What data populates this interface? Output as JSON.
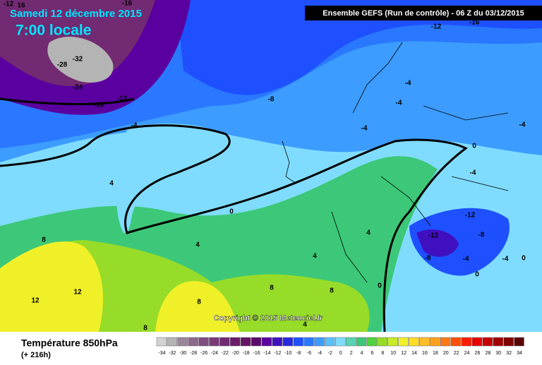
{
  "header": {
    "title": "Samedi 12 décembre 2015",
    "subtitle": "7:00 locale",
    "model": "Ensemble GEFS  (Run de contrôle)  - 06 Z du 03/12/2015",
    "copyright": "Copyright © 2015 Meteociel.fr"
  },
  "footer": {
    "field": "Température 850hPa",
    "lead": "(+ 216h)"
  },
  "legend": {
    "values": [
      -34,
      -32,
      -30,
      -28,
      -26,
      -24,
      -22,
      -20,
      -18,
      -16,
      -14,
      -12,
      -10,
      -8,
      -6,
      -4,
      -2,
      0,
      2,
      4,
      6,
      8,
      10,
      12,
      14,
      16,
      18,
      20,
      22,
      24,
      26,
      28,
      30,
      32,
      34
    ],
    "colors": [
      "#d2d2d2",
      "#b4b4b4",
      "#9a869a",
      "#8c6a8c",
      "#804c80",
      "#7a3a7a",
      "#722a72",
      "#6a1c6a",
      "#641464",
      "#5a0a6a",
      "#5a00a0",
      "#4010c0",
      "#2828e0",
      "#1e50ff",
      "#2a78ff",
      "#3c9cff",
      "#5ac0ff",
      "#80dcff",
      "#5ad2b4",
      "#3cc878",
      "#50d23c",
      "#96dc28",
      "#c8ec28",
      "#f0f028",
      "#ffdc28",
      "#ffbe28",
      "#ffa01e",
      "#ff7814",
      "#ff500a",
      "#ff1e00",
      "#e60000",
      "#c80000",
      "#a00000",
      "#800000",
      "#5a0000"
    ]
  },
  "map": {
    "labels": [
      "-12",
      "16",
      "-16",
      "-28",
      "-32",
      "-24",
      "-12",
      "-16",
      "-8",
      "-4",
      "4",
      "0",
      "8",
      "12",
      "12",
      "4",
      "8",
      "8",
      "8",
      "4",
      "4",
      "8",
      "0",
      "4",
      "-12",
      "-16",
      "-4",
      "-4",
      "-4",
      "0",
      "-4",
      "-4",
      "-12",
      "-12",
      "-8",
      "-8",
      "-4",
      "-4",
      "0",
      "0"
    ]
  }
}
